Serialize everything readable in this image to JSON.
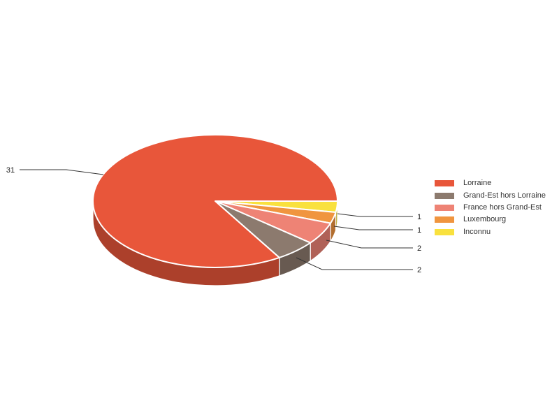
{
  "chart_data": {
    "type": "pie",
    "style": "3d",
    "title": "",
    "total": 37,
    "legend_position": "right",
    "background_color": "#ffffff",
    "outline_color": "#ffffff",
    "leader_line_color": "#333333",
    "value_label_color": "#1a1a1a",
    "legend_text_color": "#333333",
    "start_angle_deg": 0,
    "winding": "clockwise-from-east-in-reverse-legend-order",
    "series": [
      {
        "label": "Lorraine",
        "value": 31,
        "color": "#E8563A",
        "callout_value": "31"
      },
      {
        "label": "Grand-Est hors Lorraine",
        "value": 2,
        "color": "#8C7A6E",
        "callout_value": "2"
      },
      {
        "label": "France hors Grand-Est",
        "value": 2,
        "color": "#EE8375",
        "callout_value": "2"
      },
      {
        "label": "Luxembourg",
        "value": 1,
        "color": "#F0953F",
        "callout_value": "1"
      },
      {
        "label": "Inconnu",
        "value": 1,
        "color": "#F9E13E",
        "callout_value": "1"
      }
    ]
  }
}
